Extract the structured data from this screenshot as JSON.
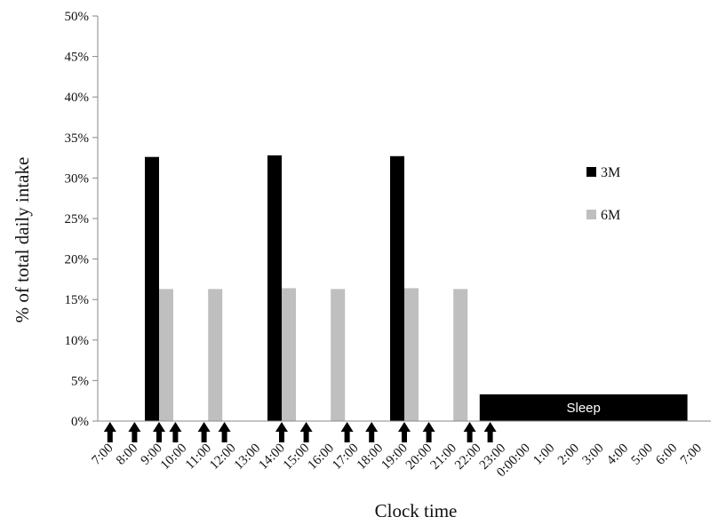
{
  "chart_data": {
    "type": "bar",
    "xlabel": "Clock time",
    "ylabel": "% of total daily intake",
    "ylim": [
      0,
      50
    ],
    "y_ticks": [
      "0%",
      "5%",
      "10%",
      "15%",
      "20%",
      "25%",
      "30%",
      "35%",
      "40%",
      "45%",
      "50%"
    ],
    "categories": [
      "7:00",
      "8:00",
      "9:00",
      "10:00",
      "11:00",
      "12:00",
      "13:00",
      "14:00",
      "15:00",
      "16:00",
      "17:00",
      "18:00",
      "19:00",
      "20:00",
      "21:00",
      "22:00",
      "23:00",
      "0:00:00",
      "1:00",
      "2:00",
      "3:00",
      "4:00",
      "5:00",
      "6:00",
      "7:00"
    ],
    "series": [
      {
        "name": "3M",
        "color": "#000000",
        "values": [
          null,
          null,
          32.6,
          null,
          null,
          null,
          null,
          32.8,
          null,
          null,
          null,
          null,
          32.7,
          null,
          null,
          null,
          null,
          null,
          null,
          null,
          null,
          null,
          null,
          null,
          null
        ]
      },
      {
        "name": "6M",
        "color": "#bfbfbf",
        "values": [
          null,
          null,
          16.3,
          null,
          16.3,
          null,
          null,
          16.4,
          null,
          16.3,
          null,
          null,
          16.4,
          null,
          16.3,
          null,
          null,
          null,
          null,
          null,
          null,
          null,
          null,
          null,
          null
        ]
      }
    ],
    "sleep_band": {
      "label": "Sleep",
      "from": "22:00",
      "to": "7:00",
      "value": 3.3,
      "color": "#000000"
    },
    "meal_arrows": [
      "8:00",
      "9:00",
      "9:40",
      "10:50",
      "11:40",
      "14:00",
      "15:00",
      "16:40",
      "17:40",
      "19:00",
      "20:00",
      "21:40",
      "22:30",
      "7:00"
    ],
    "legend": {
      "position": "right",
      "entries": [
        "3M",
        "6M"
      ]
    },
    "grid": false
  }
}
